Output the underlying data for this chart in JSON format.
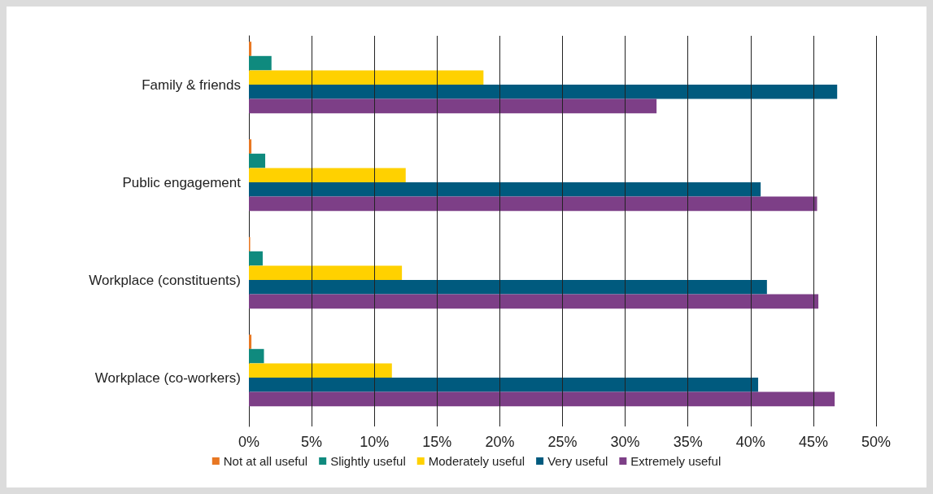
{
  "chart_data": {
    "type": "bar",
    "orientation": "horizontal",
    "categories": [
      "Family & friends",
      "Public engagement",
      "Workplace (constituents)",
      "Workplace (co-workers)"
    ],
    "series": [
      {
        "name": "Not at all useful",
        "color": "#e87722",
        "values": [
          0.2,
          0.2,
          0.1,
          0.2
        ]
      },
      {
        "name": "Slightly useful",
        "color": "#0f8a7e",
        "values": [
          1.8,
          1.3,
          1.1,
          1.2
        ]
      },
      {
        "name": "Moderately useful",
        "color": "#ffd100",
        "values": [
          18.7,
          12.5,
          12.2,
          11.4
        ]
      },
      {
        "name": "Very useful",
        "color": "#005a7e",
        "values": [
          46.9,
          40.8,
          41.3,
          40.6
        ]
      },
      {
        "name": "Extremely useful",
        "color": "#7d3f87",
        "values": [
          32.5,
          45.3,
          45.4,
          46.7
        ]
      }
    ],
    "xlim": [
      0,
      50
    ],
    "xticks": [
      {
        "value": 0,
        "label": "0%"
      },
      {
        "value": 5,
        "label": "5%"
      },
      {
        "value": 10,
        "label": "10%"
      },
      {
        "value": 15,
        "label": "15%"
      },
      {
        "value": 20,
        "label": "20%"
      },
      {
        "value": 25,
        "label": "25%"
      },
      {
        "value": 30,
        "label": "30%"
      },
      {
        "value": 35,
        "label": "35%"
      },
      {
        "value": 40,
        "label": "40%"
      },
      {
        "value": 45,
        "label": "45%"
      },
      {
        "value": 50,
        "label": "50%"
      }
    ],
    "grid": "x",
    "legend": "bottom"
  }
}
